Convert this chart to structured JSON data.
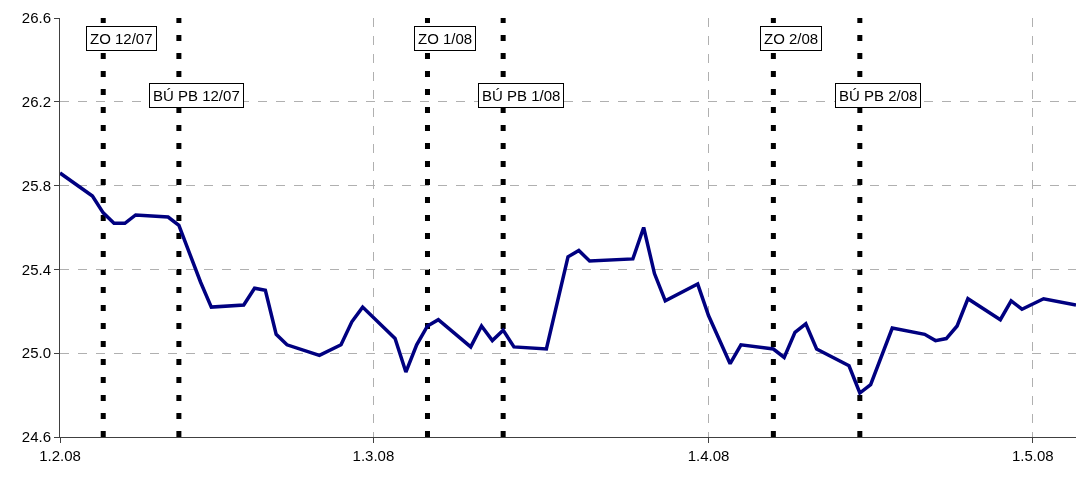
{
  "chart_data": {
    "type": "line",
    "x": [
      "2008-02-01",
      "2008-02-04",
      "2008-02-05",
      "2008-02-06",
      "2008-02-07",
      "2008-02-08",
      "2008-02-11",
      "2008-02-12",
      "2008-02-14",
      "2008-02-15",
      "2008-02-18",
      "2008-02-19",
      "2008-02-20",
      "2008-02-21",
      "2008-02-22",
      "2008-02-25",
      "2008-02-27",
      "2008-02-28",
      "2008-02-29",
      "2008-03-03",
      "2008-03-04",
      "2008-03-05",
      "2008-03-06",
      "2008-03-07",
      "2008-03-10",
      "2008-03-11",
      "2008-03-12",
      "2008-03-13",
      "2008-03-14",
      "2008-03-17",
      "2008-03-19",
      "2008-03-20",
      "2008-03-21",
      "2008-03-25",
      "2008-03-26",
      "2008-03-27",
      "2008-03-28",
      "2008-03-31",
      "2008-04-01",
      "2008-04-03",
      "2008-04-04",
      "2008-04-07",
      "2008-04-08",
      "2008-04-09",
      "2008-04-10",
      "2008-04-11",
      "2008-04-14",
      "2008-04-15",
      "2008-04-16",
      "2008-04-18",
      "2008-04-21",
      "2008-04-22",
      "2008-04-23",
      "2008-04-24",
      "2008-04-25",
      "2008-04-28",
      "2008-04-29",
      "2008-04-30",
      "2008-05-02",
      "2008-05-05"
    ],
    "series": [
      {
        "color": "#000080",
        "values": [
          25.86,
          25.75,
          25.67,
          25.62,
          25.62,
          25.66,
          25.65,
          25.61,
          25.34,
          25.22,
          25.23,
          25.31,
          25.3,
          25.09,
          25.04,
          24.99,
          25.04,
          25.15,
          25.22,
          25.07,
          24.91,
          25.04,
          25.13,
          25.16,
          25.03,
          25.13,
          25.06,
          25.11,
          25.03,
          25.02,
          25.46,
          25.49,
          25.44,
          25.45,
          25.6,
          25.38,
          25.25,
          25.33,
          25.18,
          24.95,
          25.04,
          25.02,
          24.98,
          25.1,
          25.14,
          25.02,
          24.94,
          24.81,
          24.85,
          25.12,
          25.09,
          25.06,
          25.07,
          25.13,
          25.26,
          25.16,
          25.25,
          25.21,
          25.26,
          25.23
        ]
      }
    ],
    "xlim": [
      "2008-02-01",
      "2008-05-05"
    ],
    "xticks": [
      {
        "value": "2008-02-01",
        "label": "1.2.08"
      },
      {
        "value": "2008-03-01",
        "label": "1.3.08"
      },
      {
        "value": "2008-04-01",
        "label": "1.4.08"
      },
      {
        "value": "2008-05-01",
        "label": "1.5.08"
      }
    ],
    "ylim": [
      24.6,
      26.6
    ],
    "yticks": [
      24.6,
      {
        "value": 25.0,
        "label": "25.0"
      },
      25.4,
      25.8,
      26.2,
      26.6
    ],
    "grid": true,
    "line_style": "solid",
    "marker": "none",
    "ref_lines": [
      {
        "axis": "x",
        "value": "2008-02-05",
        "label": "ZO 12/07",
        "color": "#000000",
        "line_style": "dashed"
      },
      {
        "axis": "x",
        "value": "2008-02-12",
        "label": "BÚ PB 12/07",
        "color": "#000000",
        "line_style": "dashed"
      },
      {
        "axis": "x",
        "value": "2008-03-06",
        "label": "ZO 1/08",
        "color": "#000000",
        "line_style": "dashed"
      },
      {
        "axis": "x",
        "value": "2008-03-13",
        "label": "BÚ PB 1/08",
        "color": "#000000",
        "line_style": "dashed"
      },
      {
        "axis": "x",
        "value": "2008-04-07",
        "label": "ZO 2/08",
        "color": "#000000",
        "line_style": "dashed"
      },
      {
        "axis": "x",
        "value": "2008-04-15",
        "label": "BÚ PB 2/08",
        "color": "#000000",
        "line_style": "dashed"
      }
    ]
  }
}
